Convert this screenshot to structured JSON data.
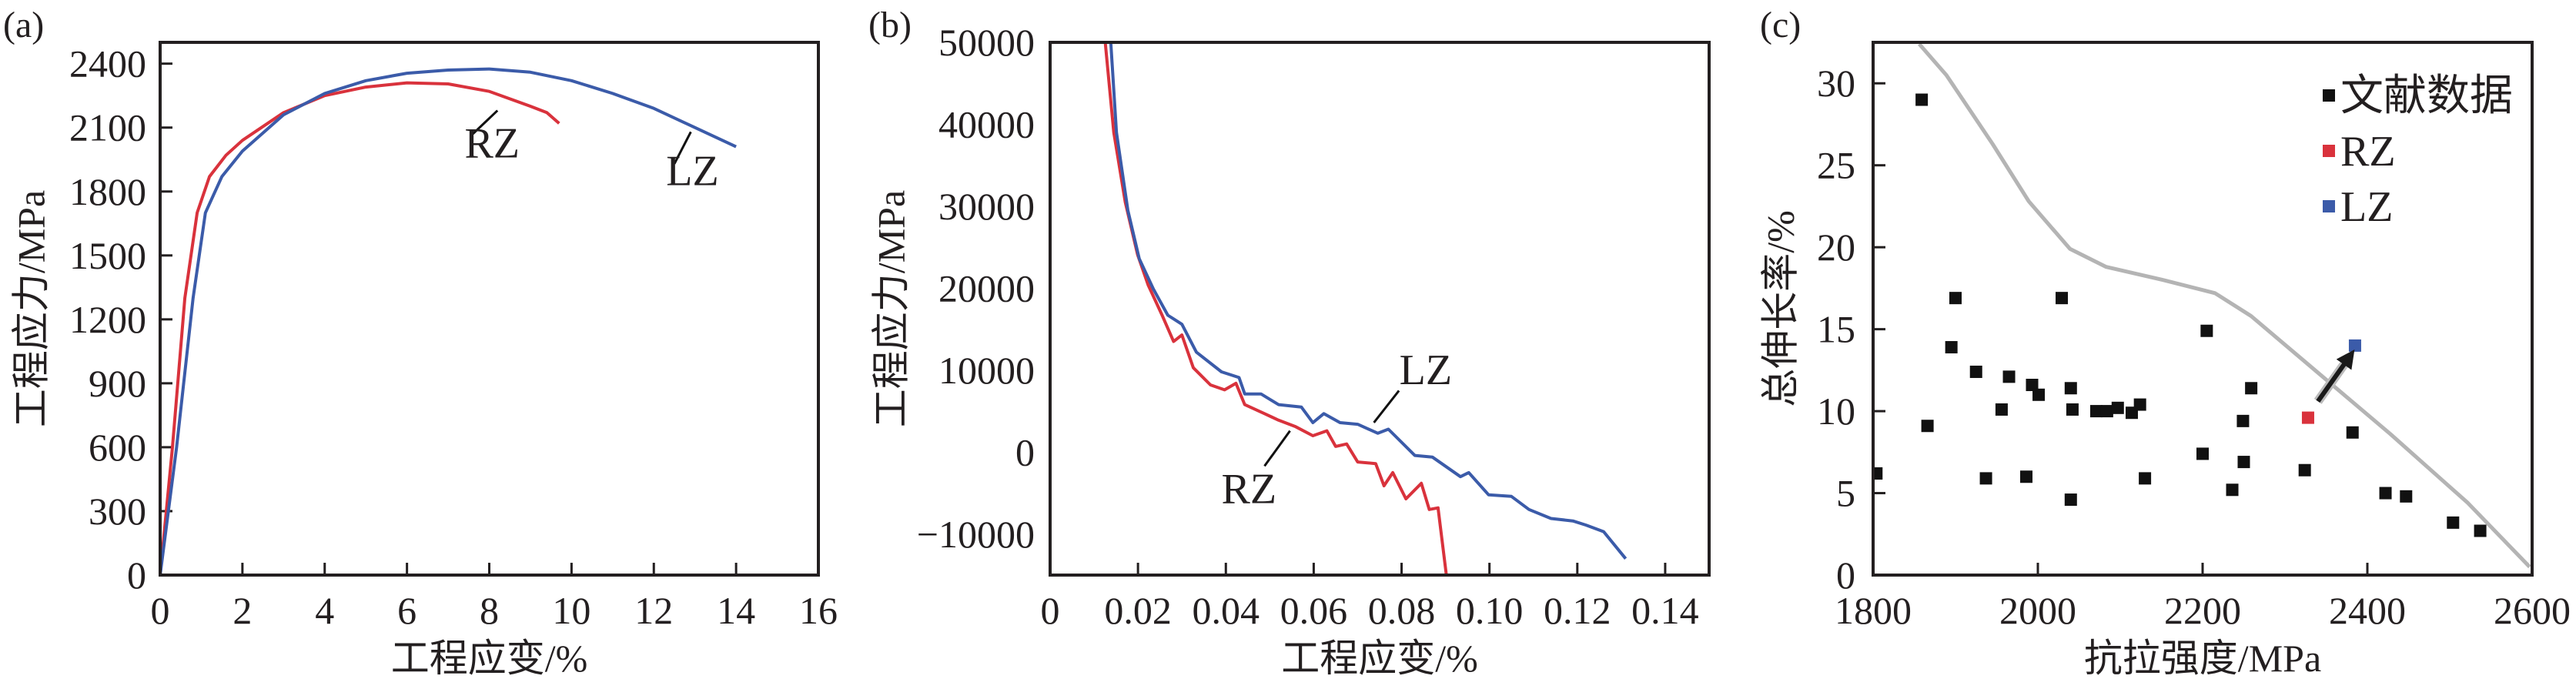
{
  "colors": {
    "RZ": "#d9323c",
    "LZ": "#3b5ba9",
    "literature": "#111111",
    "trend": "#b4b4b4",
    "axis": "#231f20"
  },
  "chart_data": [
    {
      "panel_label": "(a)",
      "type": "line",
      "xlabel": "工程应变/%",
      "ylabel": "工程应力/MPa",
      "xlim": [
        0,
        16
      ],
      "ylim": [
        0,
        2500
      ],
      "xticks": [
        0,
        2,
        4,
        6,
        8,
        10,
        12,
        14,
        16
      ],
      "yticks": [
        0,
        300,
        600,
        900,
        1200,
        1500,
        1800,
        2100,
        2400
      ],
      "grid": false,
      "series": [
        {
          "name": "RZ",
          "x": [
            0,
            0.3,
            0.6,
            0.9,
            1.2,
            1.6,
            2,
            3,
            4,
            5,
            6,
            7,
            8,
            9,
            9.4,
            9.7
          ],
          "y": [
            0,
            600,
            1300,
            1700,
            1870,
            1970,
            2040,
            2170,
            2250,
            2290,
            2310,
            2305,
            2270,
            2200,
            2170,
            2120
          ]
        },
        {
          "name": "LZ",
          "x": [
            0,
            0.4,
            0.8,
            1.1,
            1.5,
            2,
            3,
            4,
            5,
            6,
            7,
            8,
            9,
            10,
            11,
            12,
            13,
            14
          ],
          "y": [
            0,
            600,
            1300,
            1700,
            1870,
            1990,
            2160,
            2260,
            2320,
            2355,
            2370,
            2375,
            2360,
            2320,
            2260,
            2190,
            2100,
            2010
          ]
        }
      ],
      "annotations": [
        {
          "text": "RZ",
          "x": 7.4,
          "y": 1960,
          "leader": [
            [
              7.6,
              2070
            ],
            [
              8.2,
              2180
            ]
          ]
        },
        {
          "text": "LZ",
          "x": 12.3,
          "y": 1830,
          "leader": [
            [
              12.5,
              1930
            ],
            [
              12.9,
              2080
            ]
          ]
        }
      ]
    },
    {
      "panel_label": "(b)",
      "type": "line",
      "xlabel": "工程应变/%",
      "ylabel": "工程应力/MPa",
      "xlim": [
        0,
        0.15
      ],
      "ylim": [
        -15000,
        50000
      ],
      "xticks": [
        0,
        0.02,
        0.04,
        0.06,
        0.08,
        0.1,
        0.12,
        0.14
      ],
      "xtick_labels": [
        "0",
        "0.02",
        "0.04",
        "0.06",
        "0.08",
        "0.10",
        "0.12",
        "0.14"
      ],
      "yticks": [
        -10000,
        0,
        10000,
        20000,
        30000,
        40000,
        50000
      ],
      "ytick_labels": [
        "−10000",
        "0",
        "10000",
        "20000",
        "30000",
        "40000",
        "50000"
      ],
      "grid": false,
      "series": [
        {
          "name": "RZ",
          "x": [
            0.01255,
            0.0145,
            0.0171,
            0.0199,
            0.0223,
            0.0255,
            0.0281,
            0.03,
            0.0326,
            0.0365,
            0.0397,
            0.0423,
            0.0443,
            0.0488,
            0.052,
            0.0559,
            0.0598,
            0.063,
            0.065,
            0.0675,
            0.07,
            0.0741,
            0.076,
            0.078,
            0.081,
            0.0845,
            0.0863,
            0.0883,
            0.0902
          ],
          "y": [
            50000,
            39000,
            30500,
            24100,
            20400,
            16700,
            13500,
            14300,
            10300,
            8200,
            7600,
            8400,
            5800,
            4700,
            3900,
            3100,
            2000,
            2600,
            700,
            1000,
            -1200,
            -1400,
            -4100,
            -2500,
            -5700,
            -3800,
            -7000,
            -6800,
            -15000
          ]
        },
        {
          "name": "LZ",
          "x": [
            0.0138,
            0.0151,
            0.0177,
            0.0203,
            0.0235,
            0.0268,
            0.03,
            0.0333,
            0.039,
            0.043,
            0.0443,
            0.048,
            0.052,
            0.0572,
            0.0598,
            0.0623,
            0.066,
            0.07,
            0.0746,
            0.077,
            0.083,
            0.087,
            0.0934,
            0.0953,
            0.0998,
            0.105,
            0.109,
            0.114,
            0.119,
            0.122,
            0.126,
            0.131
          ],
          "y": [
            50000,
            39000,
            29500,
            23600,
            19900,
            16700,
            15600,
            12200,
            9800,
            9100,
            7100,
            7100,
            5800,
            5500,
            3600,
            4700,
            3600,
            3400,
            2300,
            2800,
            -400,
            -600,
            -3000,
            -2500,
            -5200,
            -5400,
            -7000,
            -8100,
            -8400,
            -8900,
            -9700,
            -13000
          ]
        }
      ],
      "annotations": [
        {
          "text": "LZ",
          "x": 0.0795,
          "y": 8300,
          "leader": [
            [
              0.0737,
              3600
            ],
            [
              0.0794,
              7500
            ]
          ]
        },
        {
          "text": "RZ",
          "x": 0.039,
          "y": -6200,
          "leader": [
            [
              0.0488,
              -1700
            ],
            [
              0.0546,
              2600
            ]
          ]
        }
      ]
    },
    {
      "panel_label": "(c)",
      "type": "scatter",
      "xlabel": "抗拉强度/MPa",
      "ylabel": "总伸长率/%",
      "xlim": [
        1800,
        2600
      ],
      "ylim": [
        0,
        32.5
      ],
      "xticks": [
        1800,
        2000,
        2200,
        2400,
        2600
      ],
      "yticks": [
        0,
        5,
        10,
        15,
        20,
        25,
        30
      ],
      "grid": false,
      "legend_position": "top-right",
      "series": [
        {
          "name": "文献数据",
          "x": [
            1859,
            1866,
            1804,
            1900,
            1895,
            1925,
            1937,
            1956,
            1965,
            1986,
            1993,
            2001,
            2029,
            2040,
            2042,
            2040,
            2071,
            2084,
            2097,
            2114,
            2124,
            2130,
            2200,
            2205,
            2236,
            2249,
            2250,
            2259,
            2324,
            2382,
            2422,
            2447,
            2504,
            2537
          ],
          "y": [
            29.0,
            9.1,
            6.2,
            16.9,
            13.9,
            12.4,
            5.9,
            10.1,
            12.1,
            6.0,
            11.6,
            11.0,
            16.9,
            11.4,
            10.1,
            4.6,
            10.0,
            10.0,
            10.2,
            9.9,
            10.4,
            5.9,
            7.4,
            14.9,
            5.2,
            9.4,
            6.9,
            11.4,
            6.4,
            8.7,
            5.0,
            4.8,
            3.2,
            2.7
          ]
        },
        {
          "name": "RZ",
          "x": [
            2328
          ],
          "y": [
            9.6
          ]
        },
        {
          "name": "LZ",
          "x": [
            2385
          ],
          "y": [
            14.0
          ]
        }
      ],
      "trend_line": {
        "x": [
          1856,
          1889,
          1945,
          1989,
          2039,
          2083,
          2152,
          2215,
          2259,
          2334,
          2428,
          2522,
          2597
        ],
        "y": [
          32.4,
          30.5,
          26.3,
          22.8,
          19.9,
          18.8,
          18.0,
          17.2,
          15.8,
          12.6,
          8.6,
          4.4,
          0.5
        ]
      },
      "arrow": {
        "from": [
          2340,
          10.6
        ],
        "to": [
          2378,
          13.3
        ]
      }
    }
  ]
}
